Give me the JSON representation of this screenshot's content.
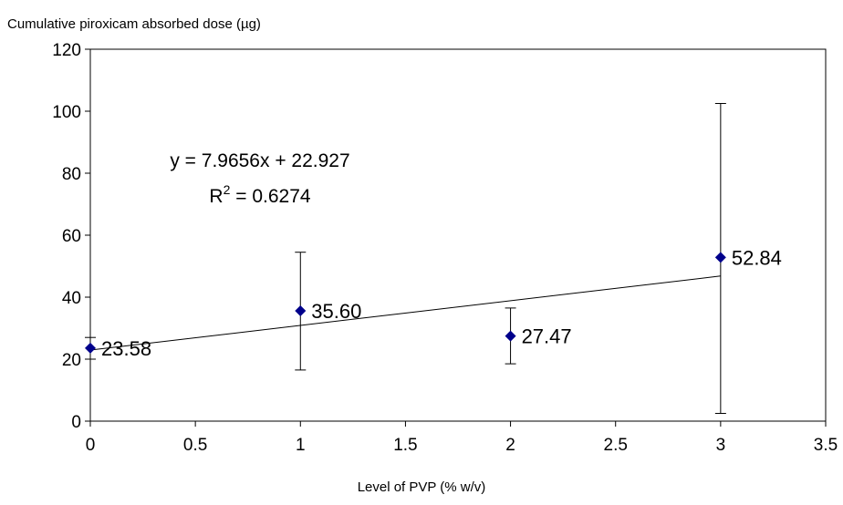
{
  "chart_data": {
    "type": "scatter",
    "ylabel": "Cumulative piroxicam absorbed dose (µg)",
    "xlabel": "Level of PVP (% w/v)",
    "xlim": [
      0,
      3.5
    ],
    "ylim": [
      0,
      120
    ],
    "x_ticks": [
      "0",
      "0.5",
      "1",
      "1.5",
      "2",
      "2.5",
      "3",
      "3.5"
    ],
    "y_ticks": [
      "0",
      "20",
      "40",
      "60",
      "80",
      "100",
      "120"
    ],
    "grid": false,
    "legend": "none",
    "series": [
      {
        "x": [
          0,
          1,
          2,
          3
        ],
        "y": [
          23.58,
          35.6,
          27.47,
          52.84
        ],
        "labels": [
          "23.58",
          "35.60",
          "27.47",
          "52.84"
        ],
        "error_low": [
          20,
          16.5,
          18.5,
          2.5
        ],
        "error_high": [
          27,
          54.5,
          36.5,
          102.5
        ],
        "color": "#00008b",
        "marker": "diamond"
      }
    ],
    "trendline": {
      "slope": 7.9656,
      "intercept": 22.927,
      "equation": "y = 7.9656x + 22.927",
      "r2_prefix": "R",
      "r2_sup": "2",
      "r2_value": " = 0.6274"
    }
  }
}
